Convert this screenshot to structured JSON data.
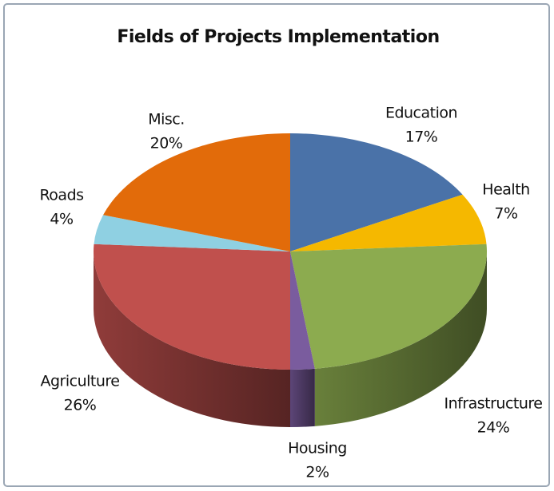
{
  "chart_data": {
    "type": "pie",
    "title": "Fields of Projects Implementation",
    "categories": [
      "Education",
      "Health",
      "Infrastructure",
      "Housing",
      "Agriculture",
      "Roads",
      "Misc."
    ],
    "values": [
      17,
      7,
      24,
      2,
      26,
      4,
      20
    ],
    "value_labels": [
      "17%",
      "7%",
      "24%",
      "2%",
      "26%",
      "4%",
      "20%"
    ],
    "colors": [
      "#4a72a8",
      "#f5b800",
      "#8cab4f",
      "#7a5c9e",
      "#c0504d",
      "#8fd0e2",
      "#e26b0a"
    ]
  }
}
